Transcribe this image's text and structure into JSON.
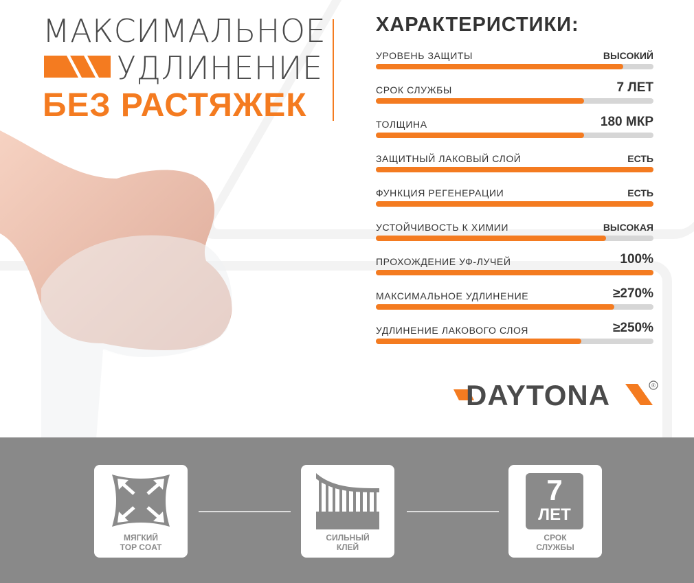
{
  "headline": {
    "line1": "МАКСИМАЛЬНОЕ",
    "line2": "УДЛИНЕНИЕ",
    "line3": "БЕЗ РАСТЯЖЕК"
  },
  "specs": {
    "title": "ХАРАКТЕРИСТИКИ:",
    "items": [
      {
        "label": "УРОВЕНЬ ЗАЩИТЫ",
        "value": "ВЫСОКИЙ",
        "level": 0.89
      },
      {
        "label": "СРОК СЛУЖБЫ",
        "value": "7 ЛЕТ",
        "level": 0.75
      },
      {
        "label": "ТОЛЩИНА",
        "value": "180 МКР",
        "level": 0.75
      },
      {
        "label": "ЗАЩИТНЫЙ ЛАКОВЫЙ СЛОЙ",
        "value": "ЕСТЬ",
        "level": 1.0
      },
      {
        "label": "ФУНКЦИЯ РЕГЕНЕРАЦИИ",
        "value": "ЕСТЬ",
        "level": 1.0
      },
      {
        "label": "УСТОЙЧИВОСТЬ К ХИМИИ",
        "value": "ВЫСОКАЯ",
        "level": 0.83
      },
      {
        "label": "ПРОХОЖДЕНИЕ УФ-ЛУЧЕЙ",
        "value": "100%",
        "level": 1.0
      },
      {
        "label": "МАКСИМАЛЬНОЕ УДЛИНЕНИЕ",
        "value": "≥270%",
        "level": 0.86
      },
      {
        "label": "УДЛИНЕНИЕ ЛАКОВОГО СЛОЯ",
        "value": "≥250%",
        "level": 0.74
      }
    ]
  },
  "logo": {
    "text": "DAYTONA",
    "mark": "®"
  },
  "features": [
    {
      "icon": "stretch-arrows-icon",
      "line1": "МЯГКИЙ",
      "line2": "TOP COAT"
    },
    {
      "icon": "adhesive-icon",
      "line1": "СИЛЬНЫЙ",
      "line2": "КЛЕЙ"
    },
    {
      "icon": "years-badge-icon",
      "badge_num": "7",
      "badge_unit": "ЛЕТ",
      "line1": "СРОК",
      "line2": "СЛУЖБЫ"
    }
  ],
  "colors": {
    "accent": "#f47b20",
    "text": "#333333",
    "band": "#898989",
    "track": "#d6d6d6"
  }
}
